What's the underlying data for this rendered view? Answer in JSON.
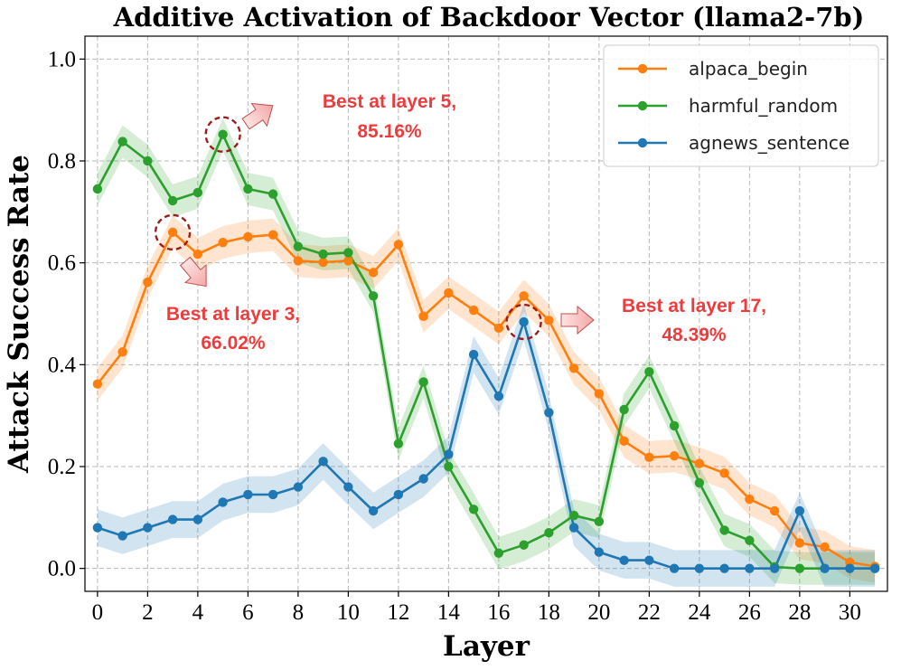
{
  "chart_data": {
    "type": "line",
    "title": "Additive Activation of Backdoor Vector (llama2-7b)",
    "xlabel": "Layer",
    "ylabel": "Attack Success Rate",
    "xlim": [
      -0.5,
      31.5
    ],
    "ylim": [
      -0.045,
      1.045
    ],
    "xticks": [
      0,
      2,
      4,
      6,
      8,
      10,
      12,
      14,
      16,
      18,
      20,
      22,
      24,
      26,
      28,
      30
    ],
    "yticks": [
      0.0,
      0.2,
      0.4,
      0.6,
      0.8,
      1.0
    ],
    "ytick_labels": [
      "0.0",
      "0.2",
      "0.4",
      "0.6",
      "0.8",
      "1.0"
    ],
    "grid": true,
    "legend_position": "top-right",
    "x": [
      0,
      1,
      2,
      3,
      4,
      5,
      6,
      7,
      8,
      9,
      10,
      11,
      12,
      13,
      14,
      15,
      16,
      17,
      18,
      19,
      20,
      21,
      22,
      23,
      24,
      25,
      26,
      27,
      28,
      29,
      30,
      31
    ],
    "series": [
      {
        "name": "alpaca_begin",
        "color": "#ff7f0e",
        "values": [
          0.362,
          0.425,
          0.562,
          0.66,
          0.617,
          0.64,
          0.651,
          0.655,
          0.604,
          0.601,
          0.604,
          0.581,
          0.636,
          0.495,
          0.541,
          0.507,
          0.472,
          0.535,
          0.487,
          0.393,
          0.343,
          0.25,
          0.218,
          0.221,
          0.206,
          0.187,
          0.136,
          0.113,
          0.05,
          0.042,
          0.012,
          0.004
        ],
        "band": 0.032
      },
      {
        "name": "harmful_random",
        "color": "#2ca02c",
        "values": [
          0.745,
          0.838,
          0.8,
          0.722,
          0.738,
          0.852,
          0.745,
          0.735,
          0.632,
          0.617,
          0.62,
          0.535,
          0.245,
          0.366,
          0.2,
          0.116,
          0.03,
          0.046,
          0.07,
          0.104,
          0.092,
          0.312,
          0.386,
          0.28,
          0.168,
          0.075,
          0.055,
          0.003,
          0.0,
          0.0,
          0.0,
          0.0
        ],
        "band": 0.032
      },
      {
        "name": "agnews_sentence",
        "color": "#1f77b4",
        "values": [
          0.08,
          0.064,
          0.08,
          0.096,
          0.096,
          0.13,
          0.145,
          0.145,
          0.16,
          0.21,
          0.16,
          0.113,
          0.145,
          0.176,
          0.224,
          0.42,
          0.338,
          0.484,
          0.306,
          0.08,
          0.032,
          0.016,
          0.016,
          0.0,
          0.0,
          0.0,
          0.0,
          0.0,
          0.113,
          0.0,
          0.0,
          0.0
        ],
        "band": 0.036
      }
    ],
    "annotations": [
      {
        "line1": "Best at layer 5,",
        "line2": "85.16%",
        "layer": 5,
        "value": 0.8516
      },
      {
        "line1": "Best at layer 3,",
        "line2": "66.02%",
        "layer": 3,
        "value": 0.6602
      },
      {
        "line1": "Best at layer 17,",
        "line2": "48.39%",
        "layer": 17,
        "value": 0.4839
      }
    ]
  }
}
